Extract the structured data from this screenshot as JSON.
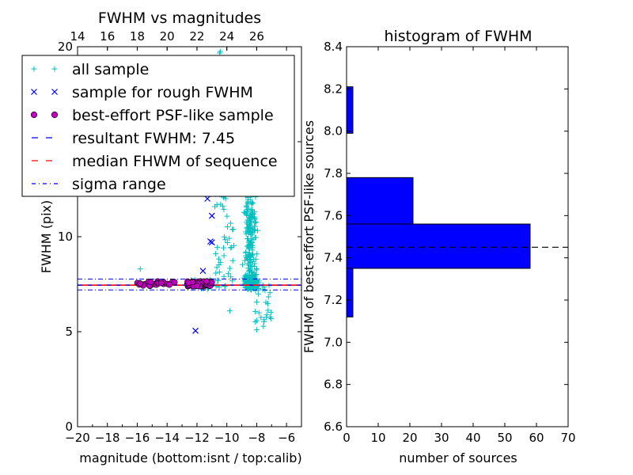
{
  "chart_data": [
    {
      "type": "scatter",
      "title": "FWHM vs magnitudes",
      "xlabel": "magnitude (bottom:isnt / top:calib)",
      "ylabel": "FWHM (pix)",
      "xlim": [
        -20,
        -5
      ],
      "ylim": [
        0,
        20
      ],
      "xticks": [
        "−20",
        "−18",
        "−16",
        "−14",
        "−12",
        "−10",
        "−8",
        "−6"
      ],
      "xtick_values": [
        -20,
        -18,
        -16,
        -14,
        -12,
        -10,
        -8,
        -6
      ],
      "yticks": [
        "0",
        "5",
        "10",
        "15",
        "20"
      ],
      "ytick_values": [
        0,
        5,
        10,
        15,
        20
      ],
      "top_xticks": [
        "14",
        "16",
        "18",
        "20",
        "22",
        "24",
        "26"
      ],
      "top_xtick_values": [
        14,
        16,
        18,
        20,
        22,
        24,
        26
      ],
      "top_offset": 34,
      "legend_position": "upper-left",
      "series": [
        {
          "name": "all sample",
          "marker": "plus",
          "color": "#00bfbf",
          "x_range": [
            -11.5,
            -6.8
          ],
          "y_range": [
            5.0,
            20.0
          ],
          "approx_count": 600,
          "notes": "dense cloud mostly between -9.5 and -7.5 magnitude"
        },
        {
          "name": "sample for rough FWHM",
          "marker": "x",
          "color": "#0000ff",
          "points": [
            [
              -12.1,
              5.05
            ],
            [
              -11.6,
              8.2
            ],
            [
              -11.1,
              9.75
            ],
            [
              -11.0,
              9.7
            ],
            [
              -11.0,
              11.1
            ],
            [
              -11.3,
              12.0
            ]
          ]
        },
        {
          "name": "best-effort PSF-like sample",
          "marker": "circle",
          "color": "#bf00bf",
          "x_range": [
            -16.0,
            -11.0
          ],
          "y_range": [
            7.35,
            7.65
          ],
          "approx_count": 80
        },
        {
          "name": "resultant FWHM: 7.45",
          "style": "dashed",
          "color": "#0000ff",
          "value": 7.45
        },
        {
          "name": "median FHWM of sequence",
          "style": "dashed",
          "color": "#ff0000",
          "value": 7.45
        },
        {
          "name": "sigma range",
          "style": "dashdot",
          "color": "#0000ff",
          "values": [
            7.2,
            7.77
          ]
        }
      ]
    },
    {
      "type": "bar",
      "orientation": "horizontal",
      "title": "histogram of FWHM",
      "xlabel": "number of sources",
      "ylabel": "FWHM of best-effort PSF-like sources",
      "xlim": [
        0,
        70
      ],
      "ylim": [
        6.6,
        8.4
      ],
      "xticks": [
        "0",
        "10",
        "20",
        "30",
        "40",
        "50",
        "60",
        "70"
      ],
      "xtick_values": [
        0,
        10,
        20,
        30,
        40,
        50,
        60,
        70
      ],
      "yticks": [
        "6.6",
        "6.8",
        "7.0",
        "7.2",
        "7.4",
        "7.6",
        "7.8",
        "8.0",
        "8.2",
        "8.4"
      ],
      "ytick_values": [
        6.6,
        6.8,
        7.0,
        7.2,
        7.4,
        7.6,
        7.8,
        8.0,
        8.2,
        8.4
      ],
      "bar_color": "#0000ff",
      "bins": [
        {
          "from": 7.12,
          "to": 7.35,
          "count": 2
        },
        {
          "from": 7.35,
          "to": 7.56,
          "count": 58
        },
        {
          "from": 7.56,
          "to": 7.78,
          "count": 21
        },
        {
          "from": 7.78,
          "to": 7.99,
          "count": 0
        },
        {
          "from": 7.99,
          "to": 8.21,
          "count": 2
        }
      ],
      "reference_line": {
        "value": 7.45,
        "style": "dashed",
        "color": "#000000"
      }
    }
  ]
}
